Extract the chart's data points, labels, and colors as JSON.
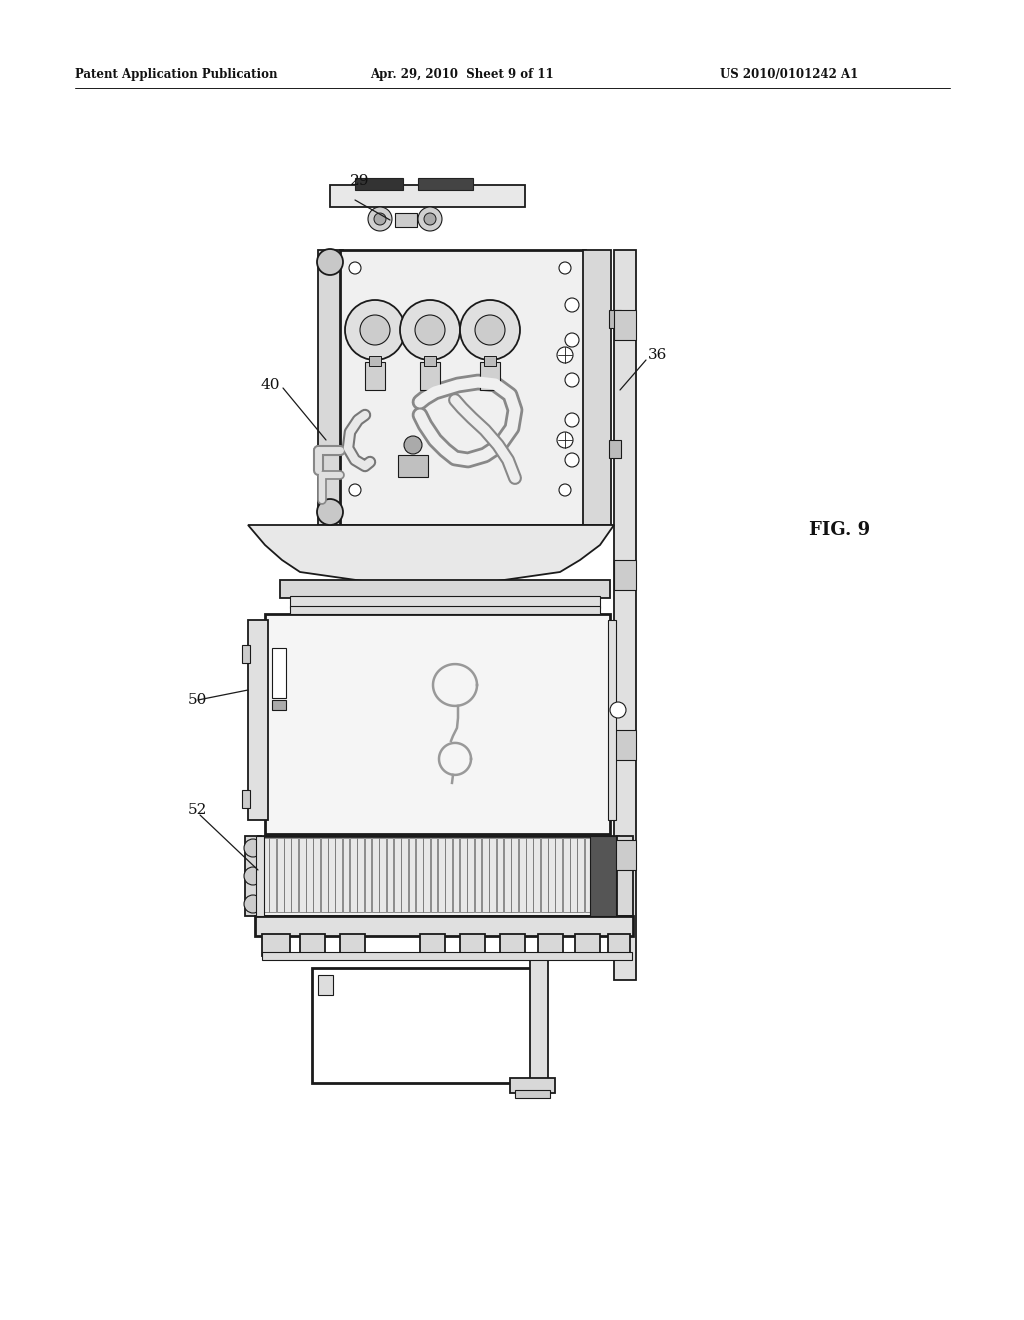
{
  "bg_color": "#ffffff",
  "header_text": "Patent Application Publication",
  "header_date": "Apr. 29, 2010  Sheet 9 of 11",
  "header_patent": "US 2010/0101242 A1",
  "fig_label": "FIG. 9",
  "dark": "#1a1a1a",
  "mid": "#888888",
  "light": "#e8e8e8",
  "lighter": "#f4f4f4"
}
